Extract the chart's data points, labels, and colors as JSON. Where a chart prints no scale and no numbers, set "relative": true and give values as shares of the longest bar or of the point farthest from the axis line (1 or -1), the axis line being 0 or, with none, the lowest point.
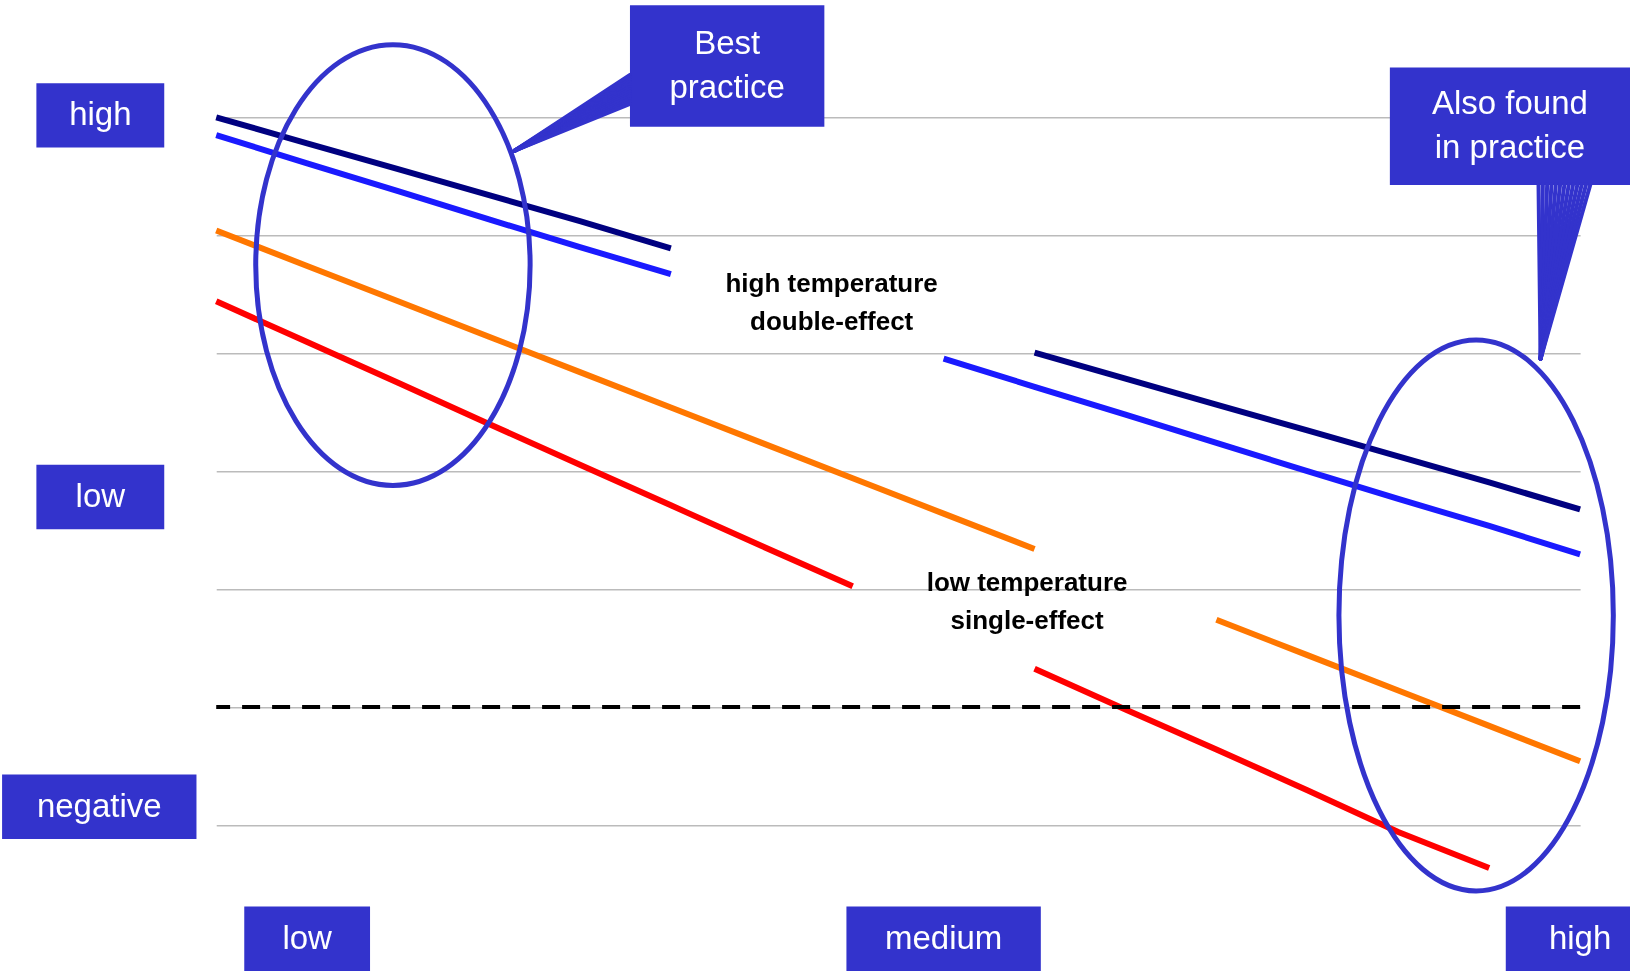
{
  "chart_data": {
    "type": "line",
    "relative": true,
    "grid": "y",
    "categories": [
      null,
      "low",
      null,
      null,
      null,
      null,
      null,
      null,
      "medium",
      null,
      null,
      null,
      null,
      null,
      null,
      "high"
    ],
    "series": [
      {
        "color": "#000080",
        "values": [
          1.0,
          0.956,
          0.912,
          0.868,
          0.824,
          0.778,
          null,
          null,
          null,
          0.601,
          0.557,
          0.513,
          0.469,
          0.425,
          0.381,
          0.335
        ]
      },
      {
        "color": "#1a1aff",
        "values": [
          0.97,
          0.922,
          0.875,
          0.827,
          0.78,
          0.734,
          null,
          null,
          0.591,
          0.543,
          0.496,
          0.448,
          0.4,
          0.353,
          0.307,
          0.259
        ]
      },
      {
        "color": "#ff7700",
        "values": [
          0.808,
          0.748,
          0.688,
          0.628,
          0.568,
          0.508,
          0.448,
          0.388,
          0.328,
          0.268,
          null,
          0.148,
          0.088,
          0.028,
          -0.032,
          -0.092
        ]
      },
      {
        "color": "#ff0000",
        "values": [
          0.688,
          0.619,
          0.55,
          0.48,
          0.411,
          0.342,
          0.273,
          0.205,
          null,
          0.065,
          -0.004,
          -0.072,
          -0.141,
          -0.212,
          -0.273,
          null
        ]
      }
    ],
    "ref_lines": [
      {
        "axis": "y",
        "value": 0,
        "color": "#000000",
        "line_style": "dashed"
      }
    ],
    "annotations": [
      "high",
      "low",
      "negative",
      "Best\npractice",
      "Also found\nin practice",
      "high temperature\ndouble-effect",
      "low temperature\nsingle-effect"
    ]
  }
}
